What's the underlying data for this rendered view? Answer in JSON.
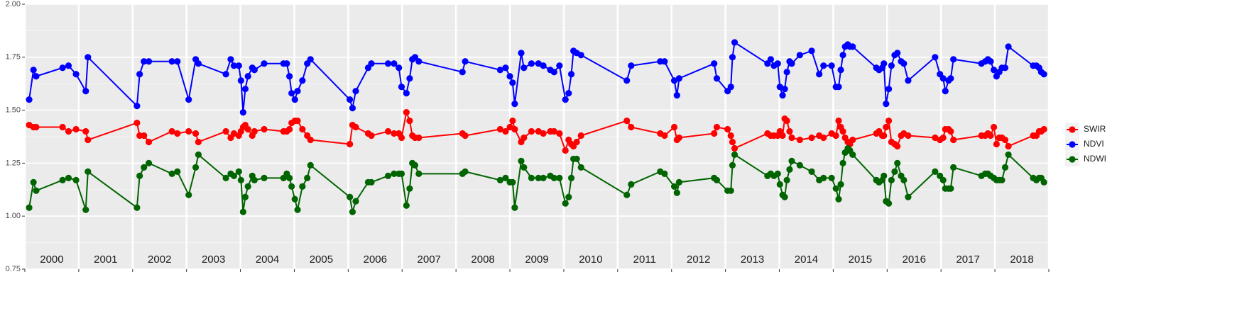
{
  "chart_data": {
    "type": "line",
    "x": [
      2000.08,
      2000.16,
      2000.21,
      2000.7,
      2000.81,
      2000.95,
      2001.13,
      2001.17,
      2002.08,
      2002.13,
      2002.21,
      2002.3,
      2002.73,
      2002.83,
      2003.04,
      2003.17,
      2003.22,
      2003.73,
      2003.82,
      2003.88,
      2003.97,
      2004.01,
      2004.05,
      2004.09,
      2004.14,
      2004.22,
      2004.26,
      2004.44,
      2004.8,
      2004.86,
      2004.91,
      2004.95,
      2005.01,
      2005.06,
      2005.15,
      2005.24,
      2005.3,
      2006.03,
      2006.08,
      2006.14,
      2006.37,
      2006.43,
      2006.74,
      2006.85,
      2006.94,
      2006.99,
      2007.08,
      2007.14,
      2007.19,
      2007.24,
      2007.31,
      2008.12,
      2008.17,
      2008.82,
      2008.92,
      2009.0,
      2009.05,
      2009.09,
      2009.21,
      2009.26,
      2009.4,
      2009.53,
      2009.62,
      2009.75,
      2009.82,
      2009.92,
      2010.03,
      2010.09,
      2010.14,
      2010.18,
      2010.24,
      2010.32,
      2011.17,
      2011.25,
      2011.79,
      2011.87,
      2012.05,
      2012.1,
      2012.14,
      2012.79,
      2012.84,
      2013.04,
      2013.1,
      2013.13,
      2013.17,
      2013.78,
      2013.84,
      2013.9,
      2013.97,
      2014.01,
      2014.06,
      2014.1,
      2014.14,
      2014.19,
      2014.23,
      2014.38,
      2014.6,
      2014.74,
      2014.82,
      2014.97,
      2015.05,
      2015.1,
      2015.14,
      2015.18,
      2015.22,
      2015.27,
      2015.31,
      2015.36,
      2015.8,
      2015.85,
      2015.91,
      2015.94,
      2015.98,
      2016.03,
      2016.08,
      2016.14,
      2016.19,
      2016.26,
      2016.31,
      2016.39,
      2016.89,
      2016.98,
      2017.04,
      2017.08,
      2017.14,
      2017.18,
      2017.23,
      2017.75,
      2017.82,
      2017.87,
      2017.92,
      2017.98,
      2018.03,
      2018.08,
      2018.13,
      2018.19,
      2018.25,
      2018.71,
      2018.77,
      2018.82,
      2018.86,
      2018.91
    ],
    "series": [
      {
        "name": "SWIR",
        "color": "#ff0000",
        "values": [
          1.43,
          1.42,
          1.42,
          1.42,
          1.4,
          1.41,
          1.4,
          1.36,
          1.44,
          1.38,
          1.38,
          1.35,
          1.4,
          1.39,
          1.4,
          1.39,
          1.35,
          1.4,
          1.37,
          1.39,
          1.38,
          1.4,
          1.42,
          1.43,
          1.41,
          1.38,
          1.4,
          1.41,
          1.4,
          1.4,
          1.41,
          1.44,
          1.45,
          1.45,
          1.41,
          1.38,
          1.36,
          1.34,
          1.43,
          1.42,
          1.39,
          1.38,
          1.4,
          1.39,
          1.39,
          1.37,
          1.49,
          1.45,
          1.38,
          1.37,
          1.37,
          1.39,
          1.38,
          1.41,
          1.4,
          1.42,
          1.45,
          1.41,
          1.35,
          1.37,
          1.4,
          1.4,
          1.39,
          1.4,
          1.4,
          1.39,
          1.31,
          1.36,
          1.34,
          1.33,
          1.35,
          1.38,
          1.45,
          1.42,
          1.39,
          1.38,
          1.42,
          1.36,
          1.37,
          1.39,
          1.42,
          1.41,
          1.38,
          1.35,
          1.32,
          1.39,
          1.38,
          1.38,
          1.38,
          1.4,
          1.38,
          1.46,
          1.45,
          1.4,
          1.37,
          1.36,
          1.37,
          1.38,
          1.37,
          1.39,
          1.38,
          1.45,
          1.42,
          1.4,
          1.37,
          1.35,
          1.34,
          1.36,
          1.39,
          1.4,
          1.38,
          1.38,
          1.42,
          1.45,
          1.35,
          1.34,
          1.33,
          1.38,
          1.39,
          1.38,
          1.37,
          1.36,
          1.37,
          1.41,
          1.41,
          1.4,
          1.36,
          1.38,
          1.38,
          1.39,
          1.38,
          1.42,
          1.34,
          1.37,
          1.37,
          1.36,
          1.33,
          1.38,
          1.38,
          1.4,
          1.4,
          1.41
        ]
      },
      {
        "name": "NDVI",
        "color": "#0000ff",
        "values": [
          1.55,
          1.69,
          1.66,
          1.7,
          1.71,
          1.67,
          1.59,
          1.75,
          1.52,
          1.67,
          1.73,
          1.73,
          1.73,
          1.73,
          1.55,
          1.74,
          1.72,
          1.67,
          1.74,
          1.71,
          1.71,
          1.64,
          1.49,
          1.6,
          1.66,
          1.7,
          1.69,
          1.72,
          1.72,
          1.72,
          1.66,
          1.58,
          1.55,
          1.59,
          1.64,
          1.72,
          1.74,
          1.55,
          1.51,
          1.59,
          1.7,
          1.72,
          1.72,
          1.72,
          1.7,
          1.61,
          1.58,
          1.65,
          1.74,
          1.75,
          1.73,
          1.68,
          1.73,
          1.69,
          1.7,
          1.66,
          1.63,
          1.53,
          1.77,
          1.7,
          1.72,
          1.72,
          1.71,
          1.69,
          1.68,
          1.71,
          1.55,
          1.58,
          1.67,
          1.78,
          1.77,
          1.76,
          1.64,
          1.71,
          1.73,
          1.73,
          1.64,
          1.57,
          1.65,
          1.72,
          1.65,
          1.59,
          1.61,
          1.75,
          1.82,
          1.72,
          1.74,
          1.71,
          1.72,
          1.61,
          1.57,
          1.6,
          1.68,
          1.73,
          1.72,
          1.76,
          1.78,
          1.67,
          1.71,
          1.71,
          1.61,
          1.61,
          1.69,
          1.76,
          1.8,
          1.81,
          1.8,
          1.8,
          1.7,
          1.69,
          1.7,
          1.72,
          1.53,
          1.6,
          1.71,
          1.76,
          1.77,
          1.73,
          1.72,
          1.64,
          1.75,
          1.67,
          1.65,
          1.59,
          1.64,
          1.65,
          1.74,
          1.72,
          1.73,
          1.74,
          1.73,
          1.69,
          1.66,
          1.68,
          1.7,
          1.7,
          1.8,
          1.71,
          1.71,
          1.7,
          1.68,
          1.67
        ]
      },
      {
        "name": "NDWI",
        "color": "#006400",
        "values": [
          1.04,
          1.16,
          1.12,
          1.17,
          1.18,
          1.17,
          1.03,
          1.21,
          1.04,
          1.19,
          1.23,
          1.25,
          1.2,
          1.21,
          1.1,
          1.23,
          1.29,
          1.18,
          1.2,
          1.19,
          1.21,
          1.17,
          1.02,
          1.09,
          1.14,
          1.19,
          1.17,
          1.18,
          1.18,
          1.2,
          1.18,
          1.14,
          1.08,
          1.03,
          1.14,
          1.18,
          1.24,
          1.09,
          1.02,
          1.07,
          1.16,
          1.16,
          1.19,
          1.2,
          1.2,
          1.2,
          1.05,
          1.13,
          1.25,
          1.24,
          1.2,
          1.2,
          1.21,
          1.17,
          1.18,
          1.16,
          1.16,
          1.04,
          1.26,
          1.23,
          1.18,
          1.18,
          1.18,
          1.19,
          1.18,
          1.18,
          1.06,
          1.09,
          1.18,
          1.27,
          1.27,
          1.23,
          1.1,
          1.15,
          1.21,
          1.2,
          1.14,
          1.11,
          1.16,
          1.18,
          1.17,
          1.12,
          1.12,
          1.24,
          1.29,
          1.19,
          1.2,
          1.19,
          1.2,
          1.15,
          1.1,
          1.09,
          1.17,
          1.22,
          1.26,
          1.24,
          1.21,
          1.17,
          1.18,
          1.18,
          1.13,
          1.08,
          1.15,
          1.25,
          1.3,
          1.32,
          1.31,
          1.29,
          1.17,
          1.16,
          1.17,
          1.19,
          1.07,
          1.06,
          1.17,
          1.21,
          1.25,
          1.19,
          1.17,
          1.09,
          1.21,
          1.19,
          1.17,
          1.13,
          1.13,
          1.13,
          1.23,
          1.19,
          1.2,
          1.2,
          1.19,
          1.18,
          1.17,
          1.17,
          1.17,
          1.23,
          1.29,
          1.18,
          1.17,
          1.18,
          1.18,
          1.16
        ]
      }
    ],
    "xlim": [
      2000,
      2019
    ],
    "xticks": [
      2000,
      2001,
      2002,
      2003,
      2004,
      2005,
      2006,
      2007,
      2008,
      2009,
      2010,
      2011,
      2012,
      2013,
      2014,
      2015,
      2016,
      2017,
      2018,
      2019
    ],
    "year_labels": [
      2000,
      2001,
      2002,
      2003,
      2004,
      2005,
      2006,
      2007,
      2008,
      2009,
      2010,
      2011,
      2012,
      2013,
      2014,
      2015,
      2016,
      2017,
      2018
    ],
    "ylim": [
      0.75,
      2.0
    ],
    "yticks": [
      {
        "value": 0.75,
        "label": "0.75"
      },
      {
        "value": 1.0,
        "label": "1.00"
      },
      {
        "value": 1.25,
        "label": "1.25"
      },
      {
        "value": 1.5,
        "label": "1.50"
      },
      {
        "value": 1.75,
        "label": "1.75"
      },
      {
        "value": 2.0,
        "label": "2.00"
      }
    ],
    "grid": true,
    "legend": "right"
  }
}
